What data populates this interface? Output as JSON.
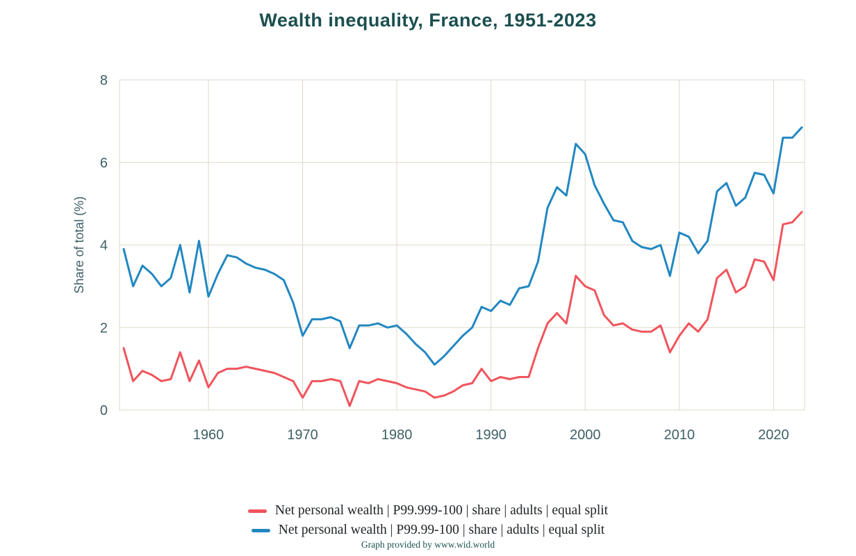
{
  "title": "Wealth inequality, France, 1951-2023",
  "footer": "Graph provided by www.wid.world",
  "chart_data": {
    "type": "line",
    "title": "Wealth inequality, France, 1951-2023",
    "xlabel": "",
    "ylabel": "Share of total (%)",
    "xlim": [
      1951,
      2023
    ],
    "ylim": [
      0,
      8
    ],
    "yticks": [
      0,
      2,
      4,
      6,
      8
    ],
    "xticks": [
      1960,
      1970,
      1980,
      1990,
      2000,
      2010,
      2020
    ],
    "grid": true,
    "legend_position": "bottom",
    "x": [
      1951,
      1952,
      1953,
      1954,
      1955,
      1956,
      1957,
      1958,
      1959,
      1960,
      1961,
      1962,
      1963,
      1964,
      1965,
      1966,
      1967,
      1968,
      1969,
      1970,
      1971,
      1972,
      1973,
      1974,
      1975,
      1976,
      1977,
      1978,
      1979,
      1980,
      1981,
      1982,
      1983,
      1984,
      1985,
      1986,
      1987,
      1988,
      1989,
      1990,
      1991,
      1992,
      1993,
      1994,
      1995,
      1996,
      1997,
      1998,
      1999,
      2000,
      2001,
      2002,
      2003,
      2004,
      2005,
      2006,
      2007,
      2008,
      2009,
      2010,
      2011,
      2012,
      2013,
      2014,
      2015,
      2016,
      2017,
      2018,
      2019,
      2020,
      2021,
      2022,
      2023
    ],
    "series": [
      {
        "name": "Net personal wealth | P99.999-100 | share | adults | equal split",
        "color": "#f0545c",
        "values": [
          1.5,
          0.7,
          0.95,
          0.85,
          0.7,
          0.75,
          1.4,
          0.7,
          1.2,
          0.55,
          0.9,
          1.0,
          1.0,
          1.05,
          1.0,
          0.95,
          0.9,
          0.8,
          0.7,
          0.3,
          0.7,
          0.7,
          0.75,
          0.7,
          0.1,
          0.7,
          0.65,
          0.75,
          0.7,
          0.65,
          0.55,
          0.5,
          0.45,
          0.3,
          0.35,
          0.45,
          0.6,
          0.65,
          1.0,
          0.7,
          0.8,
          0.75,
          0.8,
          0.8,
          1.5,
          2.1,
          2.35,
          2.1,
          3.25,
          3.0,
          2.9,
          2.3,
          2.05,
          2.1,
          1.95,
          1.9,
          1.9,
          2.05,
          1.4,
          1.8,
          2.1,
          1.9,
          2.2,
          3.2,
          3.4,
          2.85,
          3.0,
          3.65,
          3.6,
          3.15,
          4.5,
          4.55,
          4.8
        ]
      },
      {
        "name": "Net personal wealth | P99.99-100 | share | adults | equal split",
        "color": "#2187c1",
        "values": [
          3.9,
          3.0,
          3.5,
          3.3,
          3.0,
          3.2,
          4.0,
          2.85,
          4.1,
          2.75,
          3.3,
          3.75,
          3.7,
          3.55,
          3.45,
          3.4,
          3.3,
          3.15,
          2.6,
          1.8,
          2.2,
          2.2,
          2.25,
          2.15,
          1.5,
          2.05,
          2.05,
          2.1,
          2.0,
          2.05,
          1.85,
          1.6,
          1.4,
          1.1,
          1.3,
          1.55,
          1.8,
          2.0,
          2.5,
          2.4,
          2.65,
          2.55,
          2.95,
          3.0,
          3.6,
          4.9,
          5.4,
          5.2,
          6.45,
          6.2,
          5.45,
          5.0,
          4.6,
          4.55,
          4.1,
          3.95,
          3.9,
          4.0,
          3.25,
          4.3,
          4.2,
          3.8,
          4.1,
          5.3,
          5.5,
          4.95,
          5.15,
          5.75,
          5.7,
          5.25,
          6.6,
          6.6,
          6.85
        ]
      }
    ]
  }
}
